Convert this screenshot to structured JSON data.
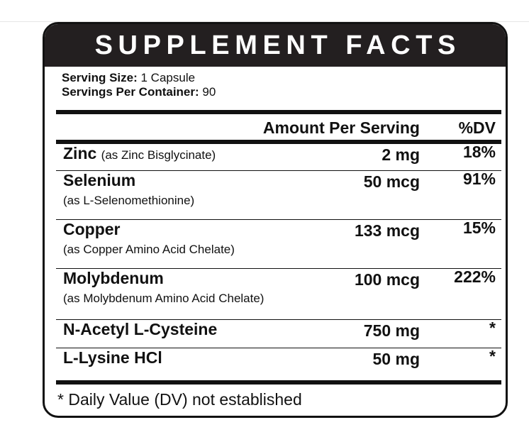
{
  "header": {
    "title": "SUPPLEMENT FACTS"
  },
  "serving": {
    "size_label": "Serving Size:",
    "size_value": "1 Capsule",
    "servings_label": "Servings Per Container:",
    "servings_value": "90"
  },
  "columns": {
    "amount": "Amount Per Serving",
    "dv": "%DV"
  },
  "rows": [
    {
      "name": "Zinc",
      "source": "(as Zinc Bisglycinate)",
      "amount": "2 mg",
      "dv": "18%"
    },
    {
      "name": "Selenium",
      "source": "(as L-Selenomethionine)",
      "amount": "50 mcg",
      "dv": "91%"
    },
    {
      "name": "Copper",
      "source": "(as Copper Amino Acid Chelate)",
      "amount": "133 mcg",
      "dv": "15%"
    },
    {
      "name": "Molybdenum",
      "source": "(as Molybdenum Amino Acid Chelate)",
      "amount": "100 mcg",
      "dv": "222%"
    },
    {
      "name": "N-Acetyl L-Cysteine",
      "amount": "750 mg",
      "dv": "*"
    },
    {
      "name": "L-Lysine HCl",
      "amount": "50 mg",
      "dv": "*"
    }
  ],
  "footnote": "* Daily Value (DV) not established"
}
